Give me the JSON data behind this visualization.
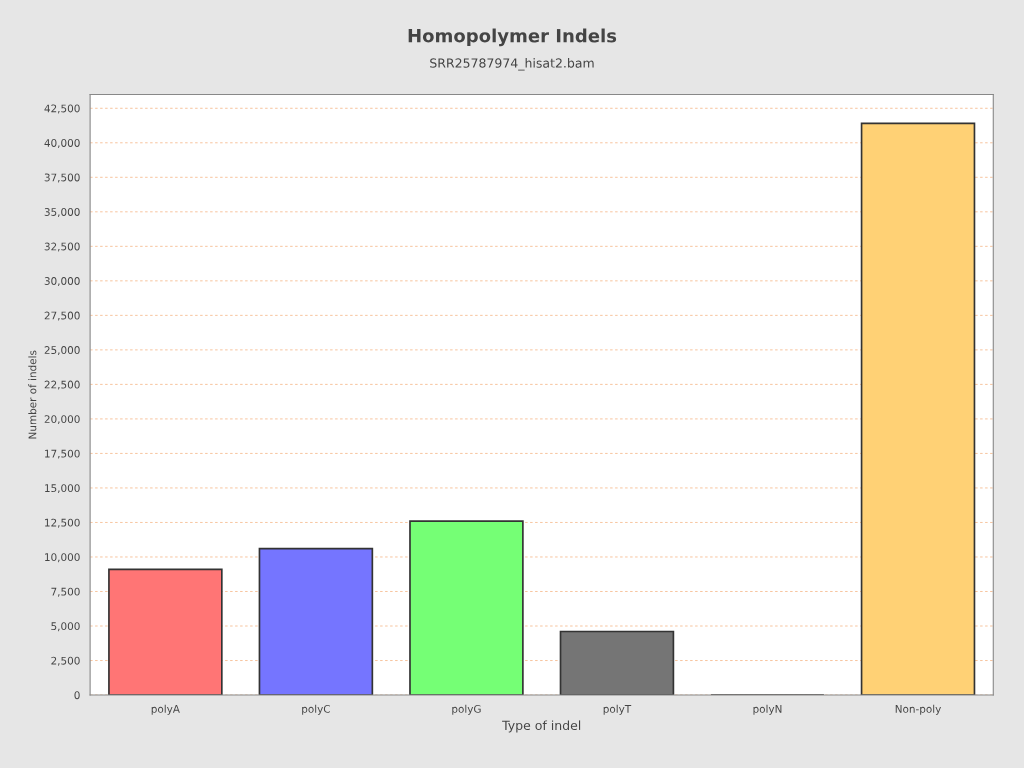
{
  "chart_data": {
    "type": "bar",
    "title": "Homopolymer Indels",
    "subtitle": "SRR25787974_hisat2.bam",
    "xlabel": "Type of indel",
    "ylabel": "Number of indels",
    "categories": [
      "polyA",
      "polyC",
      "polyG",
      "polyT",
      "polyN",
      "Non-poly"
    ],
    "values": [
      9100,
      10600,
      12600,
      4600,
      0,
      41400
    ],
    "colors": [
      "#ff7575",
      "#7575ff",
      "#75ff75",
      "#757575",
      "#333333",
      "#ffd175"
    ],
    "ylim": [
      0,
      43500
    ],
    "yticks": [
      0,
      {
        "value": 2500,
        "label": "2,500"
      },
      {
        "value": 5000,
        "label": "5,000"
      },
      {
        "value": 7500,
        "label": "7,500"
      },
      {
        "value": 10000,
        "label": "10,000"
      },
      {
        "value": 12500,
        "label": "12,500"
      },
      {
        "value": 15000,
        "label": "15,000"
      },
      {
        "value": 17500,
        "label": "17,500"
      },
      {
        "value": 20000,
        "label": "20,000"
      },
      {
        "value": 22500,
        "label": "22,500"
      },
      {
        "value": 25000,
        "label": "25,000"
      },
      {
        "value": 27500,
        "label": "27,500"
      },
      {
        "value": 30000,
        "label": "30,000"
      },
      {
        "value": 32500,
        "label": "32,500"
      },
      {
        "value": 35000,
        "label": "35,000"
      },
      {
        "value": 37500,
        "label": "37,500"
      },
      {
        "value": 40000,
        "label": "40,000"
      },
      {
        "value": 42500,
        "label": "42,500"
      }
    ],
    "grid": "y"
  }
}
